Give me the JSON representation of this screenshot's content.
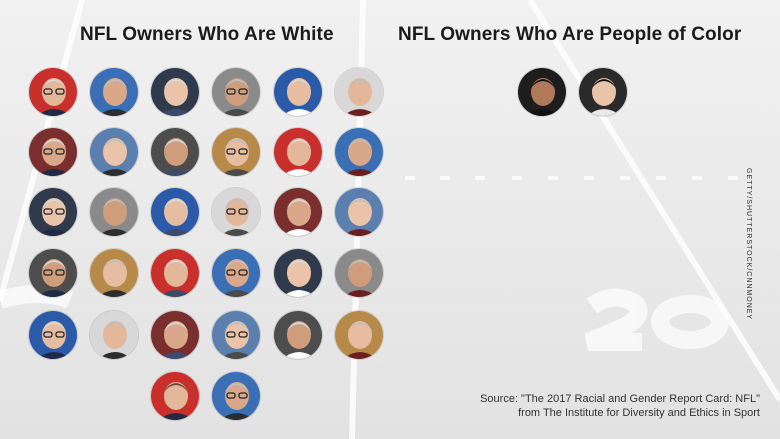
{
  "headings": {
    "white": "NFL Owners Who Are White",
    "people_of_color": "NFL Owners Who Are People of Color"
  },
  "photo_credit": "GETTY/SHUTTERSTOCK/CNNMONEY",
  "source": {
    "line1": "Source: \"The 2017 Racial and Gender Report Card: NFL\"",
    "line2": "from The Institute for Diversity and Ethics in Sport"
  },
  "white_owner_count": 32,
  "people_of_color_owner_count": 2
}
